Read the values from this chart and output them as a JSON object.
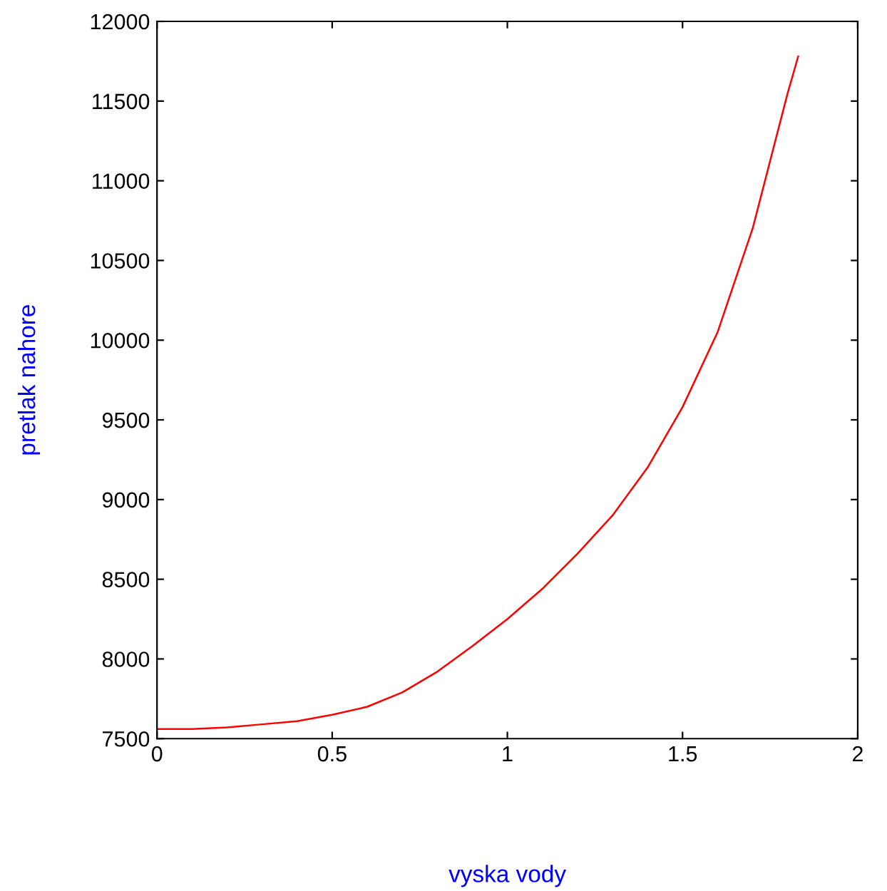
{
  "chart_data": {
    "type": "line",
    "xlabel": "vyska vody",
    "ylabel": "pretlak nahore",
    "x": [
      0.0,
      0.1,
      0.2,
      0.3,
      0.4,
      0.5,
      0.6,
      0.7,
      0.8,
      0.9,
      1.0,
      1.1,
      1.2,
      1.3,
      1.4,
      1.5,
      1.6,
      1.7,
      1.8,
      1.83
    ],
    "series": [
      {
        "color": "#ff0000",
        "values": [
          7560,
          7560,
          7570,
          7590,
          7610,
          7650,
          7700,
          7790,
          7920,
          8080,
          8250,
          8440,
          8660,
          8900,
          9200,
          9580,
          10050,
          10700,
          11550,
          11780
        ]
      }
    ],
    "xlim": [
      0,
      2
    ],
    "xticks": [
      0,
      0.5,
      1,
      1.5,
      2
    ],
    "ylim": [
      7500,
      12000
    ],
    "yticks": [
      7500,
      8000,
      8500,
      9000,
      9500,
      10000,
      10500,
      11000,
      11500,
      12000
    ],
    "grid": false,
    "legend": false,
    "marker": "none",
    "line_style": "solid"
  }
}
